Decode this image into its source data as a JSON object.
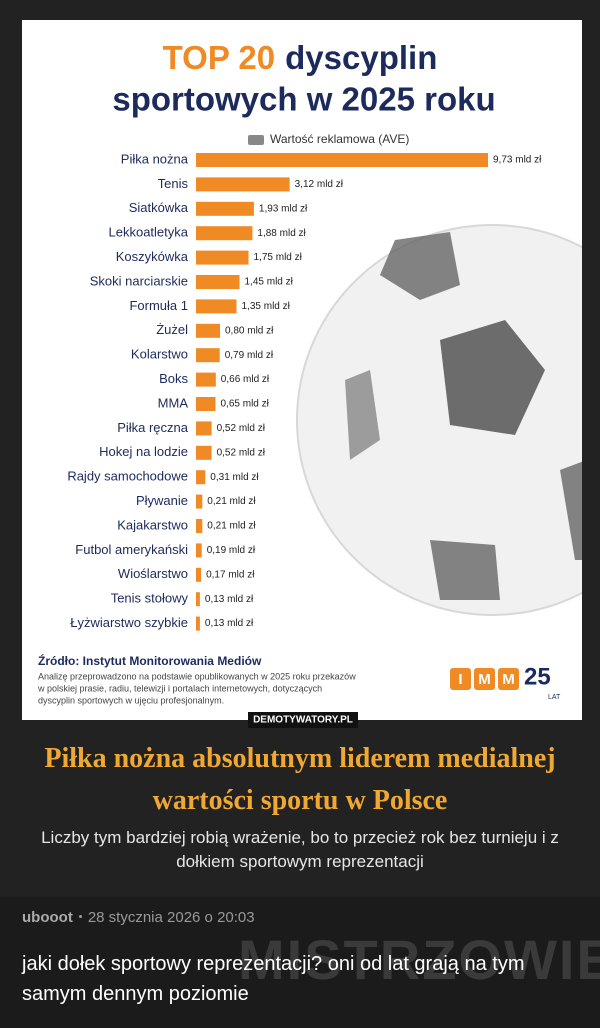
{
  "chart_data": {
    "type": "bar",
    "orientation": "horizontal",
    "title": {
      "highlight": "TOP 20",
      "line1": "dyscyplin",
      "line2": "sportowych w 2025 roku"
    },
    "categories": [
      "Piłka nożna",
      "Tenis",
      "Siatkówka",
      "Lekkoatletyka",
      "Koszykówka",
      "Skoki narciarskie",
      "Formuła 1",
      "Żużel",
      "Kolarstwo",
      "Boks",
      "MMA",
      "Piłka ręczna",
      "Hokej na lodzie",
      "Rajdy samochodowe",
      "Pływanie",
      "Kajakarstwo",
      "Futbol amerykański",
      "Wioślarstwo",
      "Tenis stołowy",
      "Łyżwiarstwo szybkie"
    ],
    "series": [
      {
        "name": "Wartość reklamowa (AVE)",
        "color": "#f08a24",
        "values": [
          9.73,
          3.12,
          1.93,
          1.88,
          1.75,
          1.45,
          1.35,
          0.8,
          0.79,
          0.66,
          0.65,
          0.52,
          0.52,
          0.31,
          0.21,
          0.21,
          0.19,
          0.17,
          0.13,
          0.13
        ],
        "value_labels": [
          "9,73 mld zł",
          "3,12 mld zł",
          "1,93 mld zł",
          "1,88 mld zł",
          "1,75 mld zł",
          "1,45 mld zł",
          "1,35 mld zł",
          "0,80 mld zł",
          "0,79 mld zł",
          "0,66 mld zł",
          "0,65 mld zł",
          "0,52 mld zł",
          "0,52 mld zł",
          "0,31 mld zł",
          "0,21 mld zł",
          "0,21 mld zł",
          "0,19 mld zł",
          "0,17 mld zł",
          "0,13 mld zł",
          "0,13 mld zł"
        ]
      }
    ],
    "legend": "top",
    "source": "Źródło: Instytut Monitorowania Mediów",
    "source_note": [
      "Analizę przeprowadzono na podstawie opublikowanych w 2025 roku przekazów",
      "w polskiej prasie, radiu, telewizji i portalach internetowych, dotyczących",
      "dyscyplin sportowych w ujęciu profesjonalnym."
    ],
    "logo": {
      "letters": [
        "I",
        "M",
        "M"
      ],
      "number": "25",
      "suffix": "LAT"
    }
  },
  "watermark": "DEMOTYWATORY.PL",
  "post": {
    "title": "Piłka nożna absolutnym liderem medialnej wartości sportu w Polsce",
    "text": "Liczby tym bardziej robią wrażenie, bo to przecież rok bez turnieju i z dołkiem sportowym reprezentacji"
  },
  "comment": {
    "author": "ubooot",
    "date": "28 stycznia 2026 o 20:03",
    "text": "jaki dołek sportowy reprezentacji? oni od lat grają na tym samym dennym poziomie"
  },
  "site_watermark": "MISTRZOWIE"
}
